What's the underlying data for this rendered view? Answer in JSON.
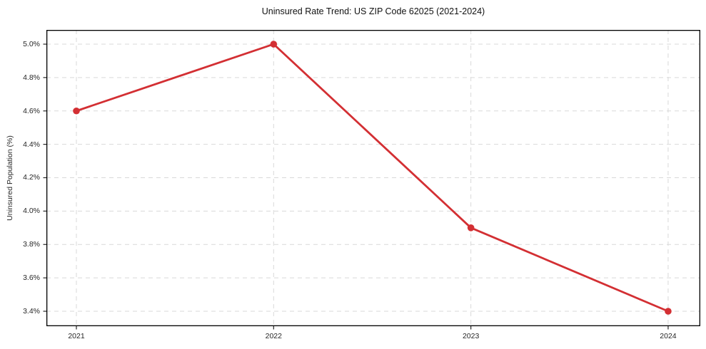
{
  "chart_data": {
    "type": "line",
    "title": "Uninsured Rate Trend: US ZIP Code 62025 (2021-2024)",
    "xlabel": "",
    "ylabel": "Uninsured Population (%)",
    "x": [
      2021,
      2022,
      2023,
      2024
    ],
    "values": [
      4.6,
      5.0,
      3.9,
      3.4
    ],
    "xticks": {
      "values": [
        2021,
        2022,
        2023,
        2024
      ],
      "labels": [
        "2021",
        "2022",
        "2023",
        "2024"
      ]
    },
    "yticks": {
      "values": [
        3.4,
        3.6,
        3.8,
        4.0,
        4.2,
        4.4,
        4.6,
        4.8,
        5.0
      ],
      "labels": [
        "3.4%",
        "3.6%",
        "3.8%",
        "4.0%",
        "4.2%",
        "4.4%",
        "4.6%",
        "4.8%",
        "5.0%"
      ]
    },
    "xlim": [
      2020.848,
      2024.163
    ],
    "ylim": [
      3.3104,
      5.0853
    ],
    "grid": true,
    "grid_style": "dashed",
    "legend": false,
    "style": {
      "line_color": "#d32f33",
      "marker_color": "#d32f33",
      "grid_color": "#d9d9d9",
      "axis_color": "#000000",
      "tick_color": "#262626",
      "text_color": "#262626",
      "line_width": 2.8,
      "marker_radius": 4.8
    }
  }
}
